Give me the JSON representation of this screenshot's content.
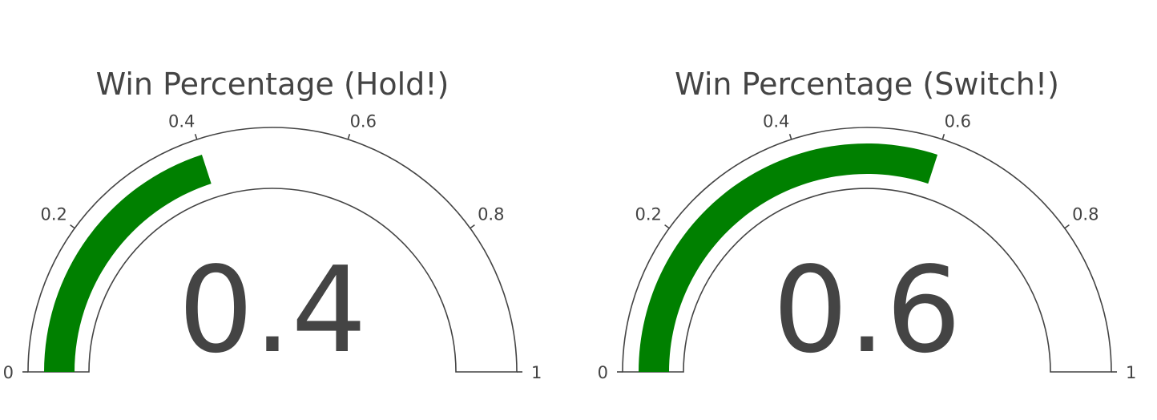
{
  "chart_data": [
    {
      "type": "gauge",
      "title": "Win Percentage (Hold!)",
      "value": 0.4,
      "value_label": "0.4",
      "range": [
        0,
        1
      ],
      "ticks": [
        0,
        0.2,
        0.4,
        0.6,
        0.8,
        1
      ],
      "tick_labels": [
        "0",
        "0.2",
        "0.4",
        "0.6",
        "0.8",
        "1"
      ],
      "bar_color": "#008000",
      "outline_color": "#444444",
      "background_color": "#ffffff"
    },
    {
      "type": "gauge",
      "title": "Win Percentage (Switch!)",
      "value": 0.6,
      "value_label": "0.6",
      "range": [
        0,
        1
      ],
      "ticks": [
        0,
        0.2,
        0.4,
        0.6,
        0.8,
        1
      ],
      "tick_labels": [
        "0",
        "0.2",
        "0.4",
        "0.6",
        "0.8",
        "1"
      ],
      "bar_color": "#008000",
      "outline_color": "#444444",
      "background_color": "#ffffff"
    }
  ]
}
